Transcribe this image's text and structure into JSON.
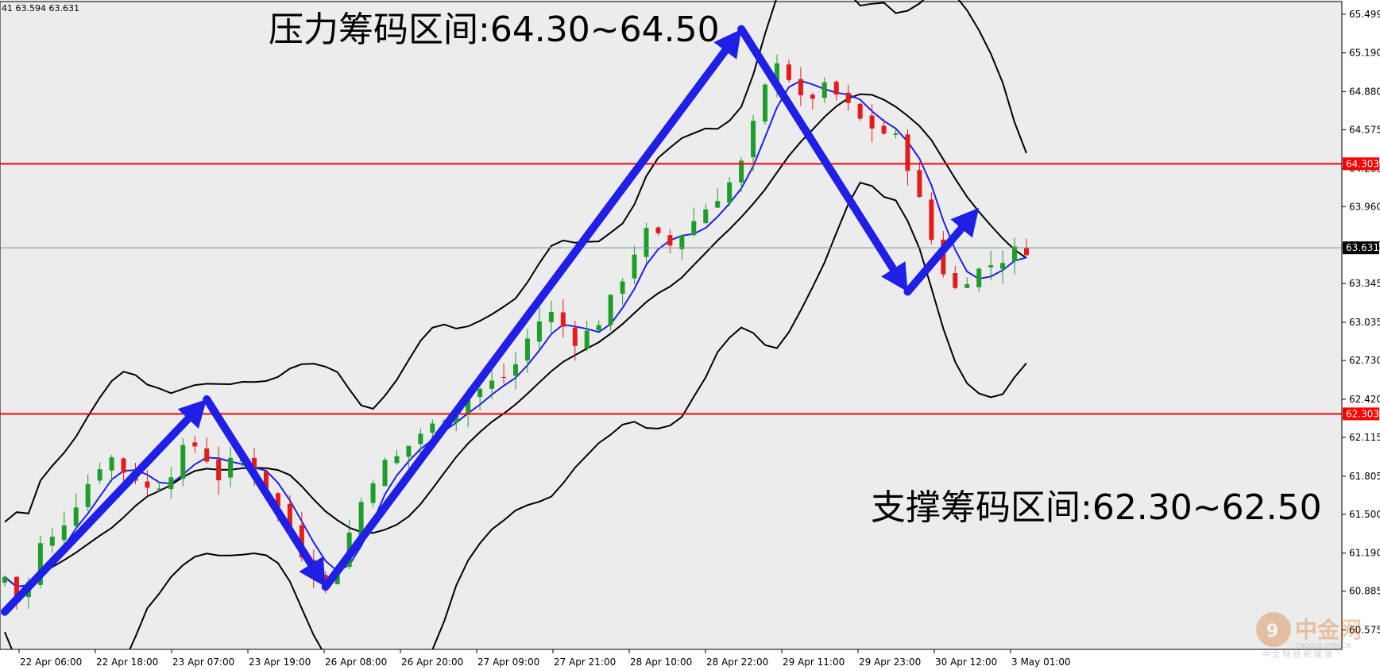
{
  "header_readout": "41 63.594 63.631",
  "annotations": {
    "resistance": "压力筹码区间:64.30~64.50",
    "support": "支撑筹码区间:62.30~62.50"
  },
  "watermark": {
    "brand": "中金网",
    "site": "CNGOLD.COM.CN",
    "slogan": "中 文 财 经 新 媒 体"
  },
  "colors": {
    "background": "#ececec",
    "bull_candle": "#1f9d2a",
    "bear_candle": "#e41b1b",
    "level_line": "#ff0000",
    "arrow": "#1f1fe6",
    "ma_blue": "#1f1fe6",
    "bands": "#000000",
    "price_label": "#000000"
  },
  "chart_data": {
    "type": "candlestick",
    "title": "",
    "ylim": [
      60.42,
      65.6
    ],
    "y_ticks": [
      "65.499",
      "65.190",
      "64.880",
      "64.575",
      "64.265",
      "63.960",
      "63.650",
      "63.345",
      "63.035",
      "62.730",
      "62.420",
      "62.115",
      "61.805",
      "61.500",
      "61.190",
      "60.885",
      "60.575"
    ],
    "y_tick_values": [
      65.499,
      65.19,
      64.88,
      64.575,
      64.265,
      63.96,
      63.65,
      63.345,
      63.035,
      62.73,
      62.42,
      62.115,
      61.805,
      61.5,
      61.19,
      60.885,
      60.575
    ],
    "x_ticks": [
      "22 Apr 06:00",
      "22 Apr 18:00",
      "23 Apr 07:00",
      "23 Apr 19:00",
      "26 Apr 08:00",
      "26 Apr 20:00",
      "27 Apr 09:00",
      "27 Apr 21:00",
      "28 Apr 10:00",
      "28 Apr 22:00",
      "29 Apr 11:00",
      "29 Apr 23:00",
      "30 Apr 12:00",
      "3 May 01:00"
    ],
    "horizontal_levels": [
      {
        "label": "64.303",
        "value": 64.303,
        "color": "#ff0000"
      },
      {
        "label": "62.303",
        "value": 62.303,
        "color": "#ff0000"
      }
    ],
    "current_price": {
      "label": "63.631",
      "value": 63.631
    },
    "close_path": [
      61.0,
      60.85,
      60.95,
      61.25,
      61.3,
      61.45,
      61.6,
      61.75,
      61.9,
      61.95,
      61.85,
      61.8,
      61.7,
      61.75,
      61.85,
      62.0,
      62.05,
      61.95,
      61.8,
      61.9,
      61.95,
      61.85,
      61.7,
      61.55,
      61.4,
      61.2,
      61.05,
      60.95,
      61.1,
      61.35,
      61.6,
      61.8,
      61.9,
      61.95,
      62.05,
      62.15,
      62.2,
      62.3,
      62.35,
      62.45,
      62.5,
      62.55,
      62.6,
      62.7,
      62.9,
      63.05,
      63.1,
      63.0,
      62.9,
      62.95,
      63.05,
      63.2,
      63.4,
      63.6,
      63.75,
      63.7,
      63.65,
      63.75,
      63.85,
      63.95,
      64.05,
      64.15,
      64.3,
      64.6,
      64.9,
      65.15,
      65.0,
      64.8,
      64.85,
      64.9,
      64.85,
      64.75,
      64.65,
      64.6,
      64.55,
      64.5,
      64.3,
      64.0,
      63.7,
      63.45,
      63.3,
      63.4,
      63.45,
      63.5,
      63.55,
      63.6,
      63.63
    ],
    "arrows": [
      {
        "from": [
          0,
          60.72
        ],
        "to": [
          17,
          62.42
        ]
      },
      {
        "from": [
          17,
          62.42
        ],
        "to": [
          27,
          60.92
        ]
      },
      {
        "from": [
          27,
          60.92
        ],
        "to": [
          62,
          65.38
        ]
      },
      {
        "from": [
          62,
          65.38
        ],
        "to": [
          76,
          63.28
        ]
      },
      {
        "from": [
          76,
          63.28
        ],
        "to": [
          82,
          63.95
        ]
      }
    ]
  }
}
